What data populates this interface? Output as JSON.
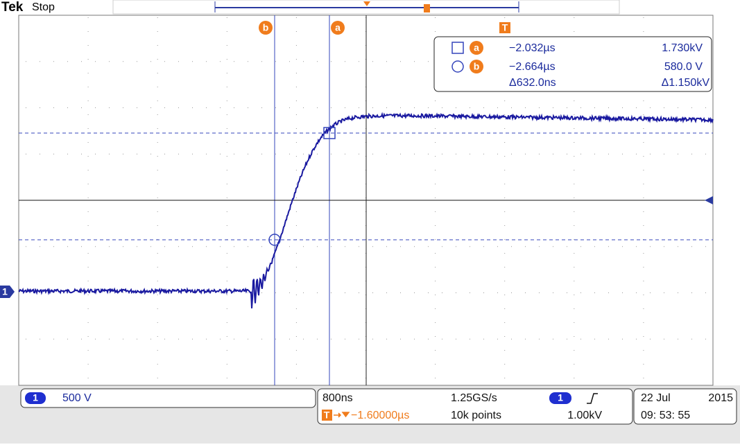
{
  "header": {
    "brand": "Tek",
    "status": "Stop"
  },
  "cursors": {
    "a": "a",
    "b": "b",
    "trigger": "T"
  },
  "readout": {
    "rows": [
      {
        "label": "a",
        "time": "−2.032µs",
        "value": "1.730kV"
      },
      {
        "label": "b",
        "time": "−2.664µs",
        "value": "580.0 V"
      },
      {
        "time": "Δ632.0ns",
        "value": "Δ1.150kV"
      }
    ]
  },
  "channel": {
    "number": "1",
    "scale": "500 V"
  },
  "timebase": {
    "scale": "800ns",
    "sample_rate": "1.25GS/s",
    "trigger_position": "−1.60000µs",
    "record_length": "10k points",
    "trigger_channel": "1",
    "trigger_level": "1.00kV"
  },
  "datetime": {
    "date": "22 Jul",
    "year": "2015",
    "time": "09: 53: 55"
  },
  "ground_marker": "1"
}
